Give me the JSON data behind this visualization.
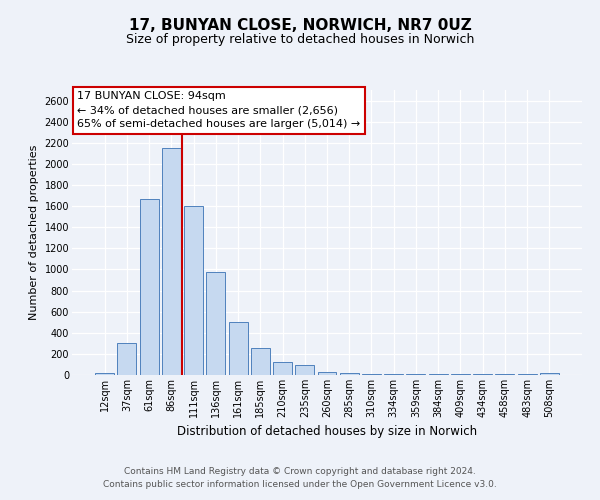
{
  "title": "17, BUNYAN CLOSE, NORWICH, NR7 0UZ",
  "subtitle": "Size of property relative to detached houses in Norwich",
  "xlabel": "Distribution of detached houses by size in Norwich",
  "ylabel": "Number of detached properties",
  "bar_labels": [
    "12sqm",
    "37sqm",
    "61sqm",
    "86sqm",
    "111sqm",
    "136sqm",
    "161sqm",
    "185sqm",
    "210sqm",
    "235sqm",
    "260sqm",
    "285sqm",
    "310sqm",
    "334sqm",
    "359sqm",
    "384sqm",
    "409sqm",
    "434sqm",
    "458sqm",
    "483sqm",
    "508sqm"
  ],
  "bar_values": [
    20,
    300,
    1670,
    2150,
    1600,
    975,
    505,
    255,
    120,
    95,
    30,
    15,
    10,
    5,
    5,
    5,
    5,
    5,
    5,
    5,
    15
  ],
  "bar_color": "#c6d9f0",
  "bar_edge_color": "#4f81bd",
  "vline_color": "#cc0000",
  "vline_x": 3.5,
  "annotation_title": "17 BUNYAN CLOSE: 94sqm",
  "annotation_line1": "← 34% of detached houses are smaller (2,656)",
  "annotation_line2": "65% of semi-detached houses are larger (5,014) →",
  "annotation_box_facecolor": "#ffffff",
  "annotation_box_edgecolor": "#cc0000",
  "ylim": [
    0,
    2700
  ],
  "yticks": [
    0,
    200,
    400,
    600,
    800,
    1000,
    1200,
    1400,
    1600,
    1800,
    2000,
    2200,
    2400,
    2600
  ],
  "background_color": "#eef2f9",
  "plot_background_color": "#eef2f9",
  "grid_color": "#ffffff",
  "title_fontsize": 11,
  "subtitle_fontsize": 9,
  "xlabel_fontsize": 8.5,
  "ylabel_fontsize": 8,
  "tick_fontsize": 7,
  "annotation_fontsize": 8,
  "footer_fontsize": 6.5,
  "footer_line1": "Contains HM Land Registry data © Crown copyright and database right 2024.",
  "footer_line2": "Contains public sector information licensed under the Open Government Licence v3.0."
}
